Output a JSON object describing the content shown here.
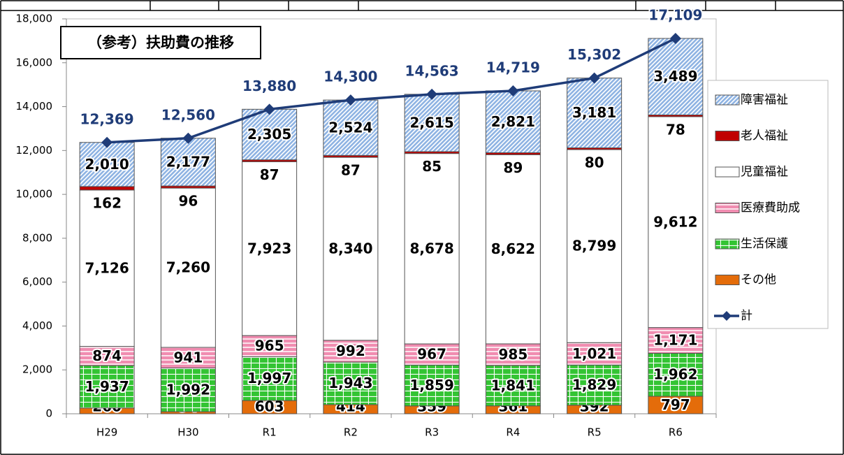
{
  "chart_data": {
    "type": "stacked-bar-line",
    "title": "（参考）扶助費の推移",
    "categories": [
      "H29",
      "H30",
      "R1",
      "R2",
      "R3",
      "R4",
      "R5",
      "R6"
    ],
    "series": [
      {
        "name": "その他",
        "color": "#e46c0a",
        "pattern": "solid",
        "values": [
          260,
          94,
          603,
          414,
          359,
          361,
          392,
          797
        ]
      },
      {
        "name": "生活保護",
        "color": "#33c433",
        "pattern": "grid",
        "values": [
          1937,
          1992,
          1997,
          1943,
          1859,
          1841,
          1829,
          1962
        ],
        "value_labels": [
          "1,937",
          "1,992",
          "1,997",
          "1,943",
          "1,859",
          "1,841",
          "1,829",
          "1,962"
        ]
      },
      {
        "name": "医療費助成",
        "color": "#f08cb0",
        "pattern": "hlines",
        "values": [
          874,
          941,
          965,
          992,
          967,
          985,
          1021,
          1171
        ],
        "value_labels": [
          "874",
          "941",
          "965",
          "992",
          "967",
          "985",
          "1,021",
          "1,171"
        ]
      },
      {
        "name": "児童福祉",
        "color": "#ffffff",
        "pattern": "solid",
        "values": [
          7126,
          7260,
          7923,
          8340,
          8678,
          8622,
          8799,
          9612
        ],
        "value_labels": [
          "7,126",
          "7,260",
          "7,923",
          "8,340",
          "8,678",
          "8,622",
          "8,799",
          "9,612"
        ]
      },
      {
        "name": "老人福祉",
        "color": "#c00000",
        "pattern": "solid",
        "values": [
          162,
          96,
          87,
          87,
          85,
          89,
          80,
          78
        ]
      },
      {
        "name": "障害福祉",
        "color": "#8fb4e3",
        "pattern": "diagonal",
        "values": [
          2010,
          2177,
          2305,
          2524,
          2615,
          2821,
          3181,
          3489
        ],
        "value_labels": [
          "2,010",
          "2,177",
          "2,305",
          "2,524",
          "2,615",
          "2,821",
          "3,181",
          "3,489"
        ]
      },
      {
        "name": "計",
        "color": "#1f3c78",
        "type": "line",
        "values": [
          12369,
          12560,
          13880,
          14300,
          14563,
          14719,
          15302,
          17109
        ],
        "value_labels": [
          "12,369",
          "12,560",
          "13,880",
          "14,300",
          "14,563",
          "14,719",
          "15,302",
          "17,109"
        ]
      }
    ],
    "legend_order": [
      5,
      4,
      3,
      2,
      1,
      0,
      6
    ],
    "ylim": [
      0,
      18000
    ],
    "yticks": [
      0,
      {
        "value": 2000,
        "label": "2,000"
      },
      {
        "value": 4000,
        "label": "4,000"
      },
      {
        "value": 6000,
        "label": "6,000"
      },
      {
        "value": 8000,
        "label": "8,000"
      },
      {
        "value": 10000,
        "label": "10,000"
      },
      {
        "value": 12000,
        "label": "12,000"
      },
      {
        "value": 14000,
        "label": "14,000"
      },
      {
        "value": 16000,
        "label": "16,000"
      },
      {
        "value": 18000,
        "label": "18,000"
      }
    ]
  }
}
